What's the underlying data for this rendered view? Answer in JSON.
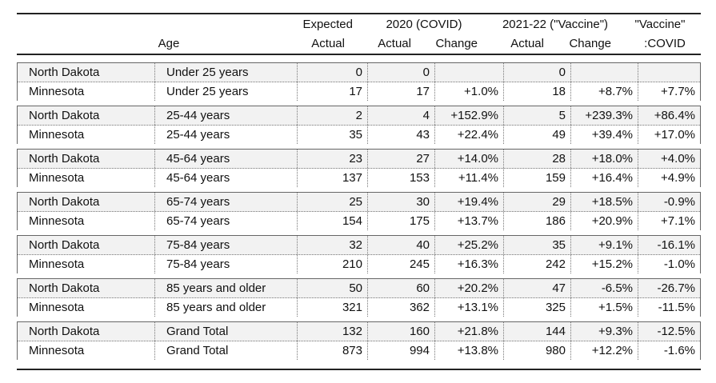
{
  "header": {
    "age": "Age",
    "expected_top": "Expected",
    "expected_bottom": "Actual",
    "covid_group": "2020 (COVID)",
    "covid_actual": "Actual",
    "covid_change": "Change",
    "vaccine_group": "2021-22 (\"Vaccine\")",
    "vaccine_actual": "Actual",
    "vaccine_change": "Change",
    "ratio_top": "\"Vaccine\"",
    "ratio_bottom": ":COVID"
  },
  "groups": [
    {
      "rows": [
        {
          "state": "North Dakota",
          "age": "Under 25 years",
          "expected": "0",
          "actual_2020": "0",
          "change_2020": "",
          "actual_2021": "0",
          "change_2021": "",
          "vaccine_covid": ""
        },
        {
          "state": "Minnesota",
          "age": "Under 25 years",
          "expected": "17",
          "actual_2020": "17",
          "change_2020": "+1.0%",
          "actual_2021": "18",
          "change_2021": "+8.7%",
          "vaccine_covid": "+7.7%"
        }
      ]
    },
    {
      "rows": [
        {
          "state": "North Dakota",
          "age": "25-44 years",
          "expected": "2",
          "actual_2020": "4",
          "change_2020": "+152.9%",
          "actual_2021": "5",
          "change_2021": "+239.3%",
          "vaccine_covid": "+86.4%"
        },
        {
          "state": "Minnesota",
          "age": "25-44 years",
          "expected": "35",
          "actual_2020": "43",
          "change_2020": "+22.4%",
          "actual_2021": "49",
          "change_2021": "+39.4%",
          "vaccine_covid": "+17.0%"
        }
      ]
    },
    {
      "rows": [
        {
          "state": "North Dakota",
          "age": "45-64 years",
          "expected": "23",
          "actual_2020": "27",
          "change_2020": "+14.0%",
          "actual_2021": "28",
          "change_2021": "+18.0%",
          "vaccine_covid": "+4.0%"
        },
        {
          "state": "Minnesota",
          "age": "45-64 years",
          "expected": "137",
          "actual_2020": "153",
          "change_2020": "+11.4%",
          "actual_2021": "159",
          "change_2021": "+16.4%",
          "vaccine_covid": "+4.9%"
        }
      ]
    },
    {
      "rows": [
        {
          "state": "North Dakota",
          "age": "65-74 years",
          "expected": "25",
          "actual_2020": "30",
          "change_2020": "+19.4%",
          "actual_2021": "29",
          "change_2021": "+18.5%",
          "vaccine_covid": "-0.9%"
        },
        {
          "state": "Minnesota",
          "age": "65-74 years",
          "expected": "154",
          "actual_2020": "175",
          "change_2020": "+13.7%",
          "actual_2021": "186",
          "change_2021": "+20.9%",
          "vaccine_covid": "+7.1%"
        }
      ]
    },
    {
      "rows": [
        {
          "state": "North Dakota",
          "age": "75-84 years",
          "expected": "32",
          "actual_2020": "40",
          "change_2020": "+25.2%",
          "actual_2021": "35",
          "change_2021": "+9.1%",
          "vaccine_covid": "-16.1%"
        },
        {
          "state": "Minnesota",
          "age": "75-84 years",
          "expected": "210",
          "actual_2020": "245",
          "change_2020": "+16.3%",
          "actual_2021": "242",
          "change_2021": "+15.2%",
          "vaccine_covid": "-1.0%"
        }
      ]
    },
    {
      "rows": [
        {
          "state": "North Dakota",
          "age": "85 years and older",
          "expected": "50",
          "actual_2020": "60",
          "change_2020": "+20.2%",
          "actual_2021": "47",
          "change_2021": "-6.5%",
          "vaccine_covid": "-26.7%"
        },
        {
          "state": "Minnesota",
          "age": "85 years and older",
          "expected": "321",
          "actual_2020": "362",
          "change_2020": "+13.1%",
          "actual_2021": "325",
          "change_2021": "+1.5%",
          "vaccine_covid": "-11.5%"
        }
      ]
    },
    {
      "rows": [
        {
          "state": "North Dakota",
          "age": "Grand Total",
          "expected": "132",
          "actual_2020": "160",
          "change_2020": "+21.8%",
          "actual_2021": "144",
          "change_2021": "+9.3%",
          "vaccine_covid": "-12.5%"
        },
        {
          "state": "Minnesota",
          "age": "Grand Total",
          "expected": "873",
          "actual_2020": "994",
          "change_2020": "+13.8%",
          "actual_2021": "980",
          "change_2021": "+12.2%",
          "vaccine_covid": "-1.6%"
        }
      ]
    }
  ]
}
